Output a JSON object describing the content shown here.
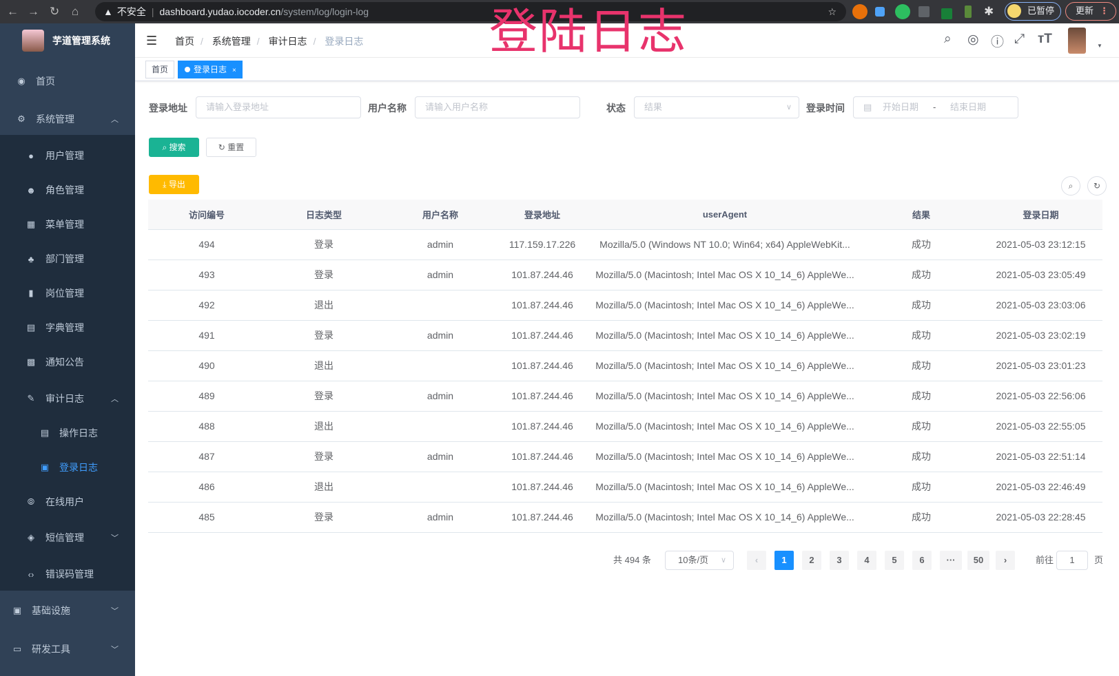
{
  "browser": {
    "not_secure": "不安全",
    "url_host": "dashboard.yudao.iocoder.cn",
    "url_path": "/system/log/login-log",
    "paused_label": "已暂停",
    "update_label": "更新"
  },
  "overlay_title": "登陆日志",
  "sidebar": {
    "app_title": "芋道管理系统",
    "items": [
      {
        "label": "首页",
        "icon": "dashboard-icon"
      },
      {
        "label": "系统管理",
        "icon": "gear-icon"
      },
      {
        "label": "用户管理",
        "icon": "user-icon"
      },
      {
        "label": "角色管理",
        "icon": "peoples-icon"
      },
      {
        "label": "菜单管理",
        "icon": "tree-table-icon"
      },
      {
        "label": "部门管理",
        "icon": "tree-icon"
      },
      {
        "label": "岗位管理",
        "icon": "post-icon"
      },
      {
        "label": "字典管理",
        "icon": "dict-icon"
      },
      {
        "label": "通知公告",
        "icon": "message-icon"
      },
      {
        "label": "审计日志",
        "icon": "log-icon"
      },
      {
        "label": "操作日志",
        "icon": "form-icon"
      },
      {
        "label": "登录日志",
        "icon": "logininfor-icon",
        "active": true
      },
      {
        "label": "在线用户",
        "icon": "online-icon"
      },
      {
        "label": "短信管理",
        "icon": "validcode-icon"
      },
      {
        "label": "错误码管理",
        "icon": "code-icon"
      },
      {
        "label": "基础设施",
        "icon": "monitor-icon"
      },
      {
        "label": "研发工具",
        "icon": "tool-icon"
      }
    ]
  },
  "header": {
    "breadcrumb": [
      "首页",
      "系统管理",
      "审计日志",
      "登录日志"
    ]
  },
  "tags": {
    "home": "首页",
    "current": "登录日志"
  },
  "filters": {
    "address_label": "登录地址",
    "address_placeholder": "请输入登录地址",
    "username_label": "用户名称",
    "username_placeholder": "请输入用户名称",
    "status_label": "状态",
    "status_placeholder": "结果",
    "time_label": "登录时间",
    "start_placeholder": "开始日期",
    "range_sep": "-",
    "end_placeholder": "结束日期"
  },
  "buttons": {
    "search": "搜索",
    "reset": "重置",
    "export": "导出"
  },
  "table": {
    "columns": [
      "访问编号",
      "日志类型",
      "用户名称",
      "登录地址",
      "userAgent",
      "结果",
      "登录日期"
    ],
    "rows": [
      [
        "494",
        "登录",
        "admin",
        "117.159.17.226",
        "Mozilla/5.0 (Windows NT 10.0; Win64; x64) AppleWebKit...",
        "成功",
        "2021-05-03 23:12:15"
      ],
      [
        "493",
        "登录",
        "admin",
        "101.87.244.46",
        "Mozilla/5.0 (Macintosh; Intel Mac OS X 10_14_6) AppleWe...",
        "成功",
        "2021-05-03 23:05:49"
      ],
      [
        "492",
        "退出",
        "",
        "101.87.244.46",
        "Mozilla/5.0 (Macintosh; Intel Mac OS X 10_14_6) AppleWe...",
        "成功",
        "2021-05-03 23:03:06"
      ],
      [
        "491",
        "登录",
        "admin",
        "101.87.244.46",
        "Mozilla/5.0 (Macintosh; Intel Mac OS X 10_14_6) AppleWe...",
        "成功",
        "2021-05-03 23:02:19"
      ],
      [
        "490",
        "退出",
        "",
        "101.87.244.46",
        "Mozilla/5.0 (Macintosh; Intel Mac OS X 10_14_6) AppleWe...",
        "成功",
        "2021-05-03 23:01:23"
      ],
      [
        "489",
        "登录",
        "admin",
        "101.87.244.46",
        "Mozilla/5.0 (Macintosh; Intel Mac OS X 10_14_6) AppleWe...",
        "成功",
        "2021-05-03 22:56:06"
      ],
      [
        "488",
        "退出",
        "",
        "101.87.244.46",
        "Mozilla/5.0 (Macintosh; Intel Mac OS X 10_14_6) AppleWe...",
        "成功",
        "2021-05-03 22:55:05"
      ],
      [
        "487",
        "登录",
        "admin",
        "101.87.244.46",
        "Mozilla/5.0 (Macintosh; Intel Mac OS X 10_14_6) AppleWe...",
        "成功",
        "2021-05-03 22:51:14"
      ],
      [
        "486",
        "退出",
        "",
        "101.87.244.46",
        "Mozilla/5.0 (Macintosh; Intel Mac OS X 10_14_6) AppleWe...",
        "成功",
        "2021-05-03 22:46:49"
      ],
      [
        "485",
        "登录",
        "admin",
        "101.87.244.46",
        "Mozilla/5.0 (Macintosh; Intel Mac OS X 10_14_6) AppleWe...",
        "成功",
        "2021-05-03 22:28:45"
      ]
    ]
  },
  "pagination": {
    "total": "共 494 条",
    "page_size": "10条/页",
    "pages": [
      "1",
      "2",
      "3",
      "4",
      "5",
      "6",
      "···",
      "50"
    ],
    "current": "1",
    "goto_label": "前往",
    "goto_value": "1",
    "goto_suffix": "页"
  },
  "colors": {
    "sidebar": "#304156",
    "submenu": "#1f2d3d",
    "accent": "#1890ff",
    "search": "#1ab394",
    "export": "#ffba00",
    "overlay_title": "#e8336c"
  }
}
